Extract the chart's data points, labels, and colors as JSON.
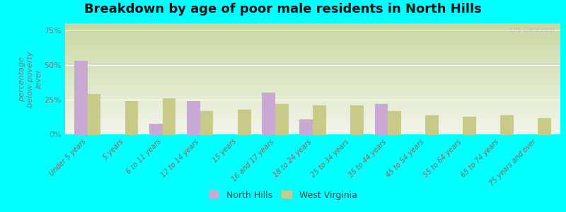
{
  "title": "Breakdown by age of poor male residents in North Hills",
  "ylabel": "percentage\nbelow poverty\nlevel",
  "categories": [
    "Under 5 years",
    "5 years",
    "6 to 11 years",
    "12 to 14 years",
    "15 years",
    "16 and 17 years",
    "18 to 24 years",
    "25 to 34 years",
    "35 to 44 years",
    "45 to 54 years",
    "55 to 64 years",
    "65 to 74 years",
    "75 years and over"
  ],
  "north_hills": [
    53,
    0,
    8,
    24,
    0,
    30,
    11,
    0,
    22,
    0,
    0,
    0,
    0
  ],
  "west_virginia": [
    29,
    24,
    26,
    17,
    18,
    22,
    21,
    21,
    17,
    14,
    13,
    14,
    12
  ],
  "north_hills_color": "#c9a8d4",
  "west_virginia_color": "#c8ca88",
  "outer_bg_color": "#00ffff",
  "yticks": [
    0,
    25,
    50,
    75
  ],
  "ytick_labels": [
    "0%",
    "25%",
    "50%",
    "75%"
  ],
  "ylim": [
    0,
    80
  ],
  "title_fontsize": 13,
  "xtick_fontsize": 7,
  "ytick_fontsize": 8,
  "ylabel_fontsize": 8,
  "xtick_color": "#886655",
  "ytick_color": "#777777",
  "watermark": "City-Data.com",
  "legend_north_hills": "North Hills",
  "legend_west_virginia": "West Virginia"
}
